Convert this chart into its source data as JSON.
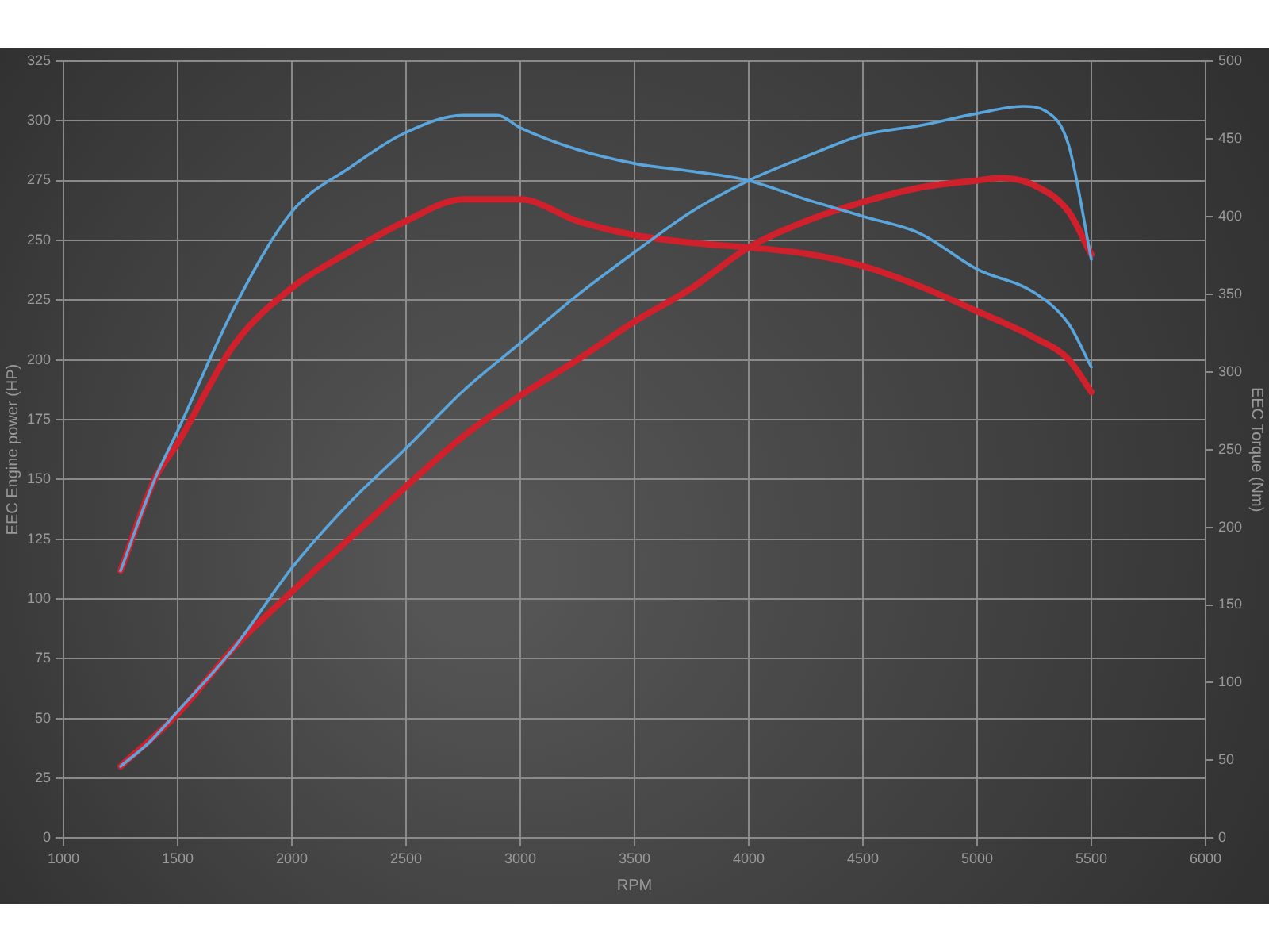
{
  "chart_data": {
    "type": "line",
    "xlabel": "RPM",
    "ylabel": "EEC Engine power (HP)",
    "y2label": "EEC Torque (Nm)",
    "xlim": [
      1000,
      6000
    ],
    "xticks": [
      1000,
      1500,
      2000,
      2500,
      3000,
      3500,
      4000,
      4500,
      5000,
      5500,
      6000
    ],
    "ylim": [
      0,
      325
    ],
    "yticks": [
      0,
      25,
      50,
      75,
      100,
      125,
      150,
      175,
      200,
      225,
      250,
      275,
      300,
      325
    ],
    "y2lim": [
      0,
      500
    ],
    "y2ticks": [
      0,
      50,
      100,
      150,
      200,
      250,
      300,
      350,
      400,
      450,
      500
    ],
    "grid": true,
    "legend": false,
    "marker": "none",
    "line_style": "solid",
    "series": [
      {
        "color": "#5aa6dc",
        "axis": "y2",
        "x": [
          1250,
          1400,
          1500,
          1750,
          2000,
          2250,
          2500,
          2750,
          2900,
          3000,
          3250,
          3500,
          3750,
          4000,
          4250,
          4500,
          4750,
          5000,
          5250,
          5400,
          5500
        ],
        "values": [
          172,
          231,
          262,
          342,
          403,
          431,
          454,
          465,
          465,
          457,
          443,
          434,
          429,
          423,
          411,
          400,
          389,
          366,
          351,
          331,
          303
        ]
      },
      {
        "color": "#d0202c",
        "axis": "y2",
        "x": [
          1250,
          1400,
          1500,
          1750,
          2000,
          2250,
          2500,
          2750,
          3000,
          3250,
          3500,
          3750,
          4000,
          4250,
          4500,
          4750,
          5000,
          5250,
          5400,
          5500
        ],
        "values": [
          172,
          231,
          254,
          318,
          354,
          377,
          397,
          411,
          411,
          397,
          388,
          383,
          380,
          376,
          368,
          355,
          339,
          322,
          308,
          287
        ]
      },
      {
        "color": "#5aa6dc",
        "x": [
          1250,
          1375,
          1500,
          1750,
          2000,
          2250,
          2500,
          2750,
          3000,
          3250,
          3500,
          3750,
          4000,
          4250,
          4500,
          4750,
          5000,
          5200,
          5300,
          5400,
          5500
        ],
        "values": [
          30,
          40,
          53,
          80,
          113,
          140,
          163,
          187,
          207,
          227,
          245,
          262,
          275,
          285,
          294,
          298,
          303,
          306,
          304,
          290,
          242
        ]
      },
      {
        "color": "#d0202c",
        "x": [
          1250,
          1500,
          1750,
          2000,
          2250,
          2500,
          2750,
          3000,
          3250,
          3500,
          3750,
          4000,
          4250,
          4500,
          4750,
          5000,
          5100,
          5250,
          5400,
          5500
        ],
        "values": [
          30,
          52,
          80,
          103,
          125,
          147,
          168,
          185,
          200,
          216,
          230,
          247,
          258,
          266,
          272,
          275,
          276,
          273,
          262,
          244
        ]
      }
    ]
  }
}
